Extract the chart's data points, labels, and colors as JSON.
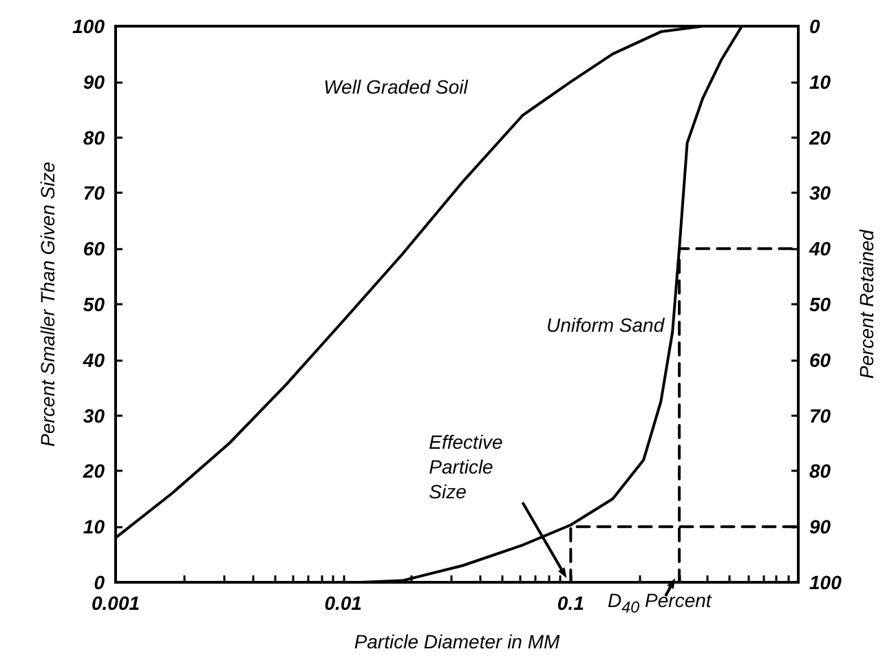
{
  "chart_data": {
    "type": "line",
    "xlabel": "Particle Diameter in MM",
    "ylabel": "Percent Smaller Than Given Size",
    "y2label": "Percent Retained",
    "log": "x",
    "xlim": [
      0.001,
      1
    ],
    "ylim": [
      0,
      100
    ],
    "y2lim": [
      100,
      0
    ],
    "xticks": [
      0.001,
      {
        "value": 0.002,
        "label": null
      },
      {
        "value": 0.003,
        "label": null
      },
      {
        "value": 0.004,
        "label": null
      },
      {
        "value": 0.005,
        "label": null
      },
      {
        "value": 0.006,
        "label": null
      },
      {
        "value": 0.007,
        "label": null
      },
      {
        "value": 0.008,
        "label": null
      },
      {
        "value": 0.009,
        "label": null
      },
      0.01,
      {
        "value": 0.02,
        "label": null
      },
      {
        "value": 0.03,
        "label": null
      },
      {
        "value": 0.04,
        "label": null
      },
      {
        "value": 0.05,
        "label": null
      },
      {
        "value": 0.06,
        "label": null
      },
      {
        "value": 0.07,
        "label": null
      },
      {
        "value": 0.08,
        "label": null
      },
      {
        "value": 0.09,
        "label": null
      },
      0.1,
      {
        "value": 0.2,
        "label": null
      },
      {
        "value": 0.3,
        "label": null
      },
      {
        "value": 0.4,
        "label": null
      },
      {
        "value": 0.5,
        "label": null
      },
      {
        "value": 0.6,
        "label": null
      },
      {
        "value": 0.7,
        "label": null
      },
      {
        "value": 0.8,
        "label": null
      },
      {
        "value": 0.9,
        "label": null
      }
    ],
    "yticks": [
      0,
      10,
      20,
      30,
      40,
      50,
      60,
      70,
      80,
      90,
      100
    ],
    "y2ticks": [
      0,
      10,
      20,
      30,
      40,
      50,
      60,
      70,
      80,
      90,
      100
    ],
    "grid": false,
    "legend": false,
    "marker": "none",
    "series": [
      {
        "name": "Well Graded Soil",
        "color": "#000000",
        "line_style": "solid",
        "x": [
          0.001,
          0.00177,
          0.00316,
          0.0056,
          0.01,
          0.0182,
          0.0335,
          0.0616,
          0.1,
          0.153,
          0.249,
          0.38,
          1
        ],
        "values": [
          8,
          16,
          25,
          35.5,
          47,
          59,
          72,
          84,
          90,
          95,
          99,
          100,
          100
        ]
      },
      {
        "name": "Uniform Sand",
        "color": "#000000",
        "line_style": "solid",
        "x": [
          0.012,
          0.0182,
          0.0335,
          0.0616,
          0.1,
          0.153,
          0.209,
          0.249,
          0.28,
          0.3,
          0.325,
          0.38,
          0.46,
          0.565
        ],
        "values": [
          0,
          0.3,
          3,
          6.7,
          10.3,
          15,
          22,
          32.5,
          45,
          60,
          79,
          87,
          94,
          100
        ]
      },
      {
        "color": "#000000",
        "line_style": "dashed",
        "x": [
          0.1,
          0.1,
          1
        ],
        "values": [
          0,
          10,
          10
        ]
      },
      {
        "color": "#000000",
        "line_style": "dashed",
        "x": [
          0.3,
          0.3,
          1
        ],
        "values": [
          0,
          60,
          60
        ]
      }
    ],
    "annotations": [
      {
        "text": "Effective\nParticle\nSize",
        "x": 0.1,
        "y": 0
      },
      {
        "text": "D$_{40}$ Percent",
        "x": 0.3,
        "y": 0
      }
    ]
  }
}
